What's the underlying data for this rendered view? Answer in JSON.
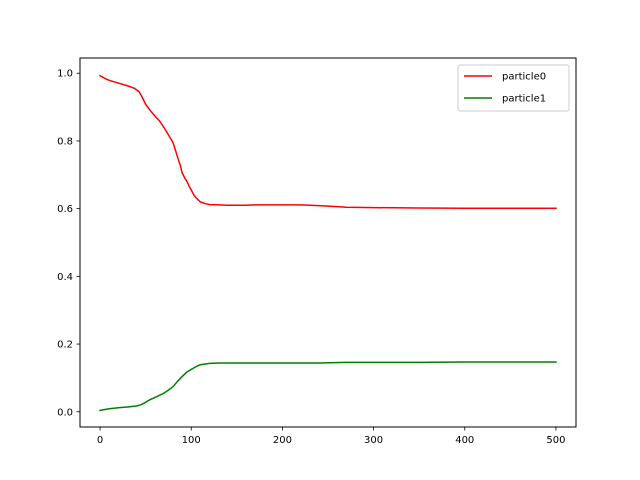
{
  "chart_data": {
    "type": "line",
    "title": "",
    "xlabel": "",
    "ylabel": "",
    "xlim": [
      -22,
      522
    ],
    "ylim": [
      -0.045,
      1.045
    ],
    "xticks": [
      0,
      100,
      200,
      300,
      400,
      500
    ],
    "xtick_labels": [
      "0",
      "100",
      "200",
      "300",
      "400",
      "500"
    ],
    "yticks": [
      0.0,
      0.2,
      0.4,
      0.6,
      0.8,
      1.0
    ],
    "ytick_labels": [
      "0.0",
      "0.2",
      "0.4",
      "0.6",
      "0.8",
      "1.0"
    ],
    "grid": false,
    "legend_position": "top-right",
    "series": [
      {
        "name": "particle0",
        "color": "#ff0000",
        "x": [
          0,
          5,
          10,
          20,
          30,
          38,
          43,
          47,
          50,
          55,
          60,
          65,
          70,
          75,
          80,
          83,
          85,
          88,
          90,
          93,
          95,
          98,
          100,
          103,
          105,
          110,
          115,
          120,
          130,
          140,
          150,
          160,
          170,
          180,
          200,
          220,
          240,
          260,
          270,
          300,
          350,
          400,
          450,
          500
        ],
        "y": [
          0.993,
          0.985,
          0.979,
          0.971,
          0.963,
          0.955,
          0.945,
          0.925,
          0.908,
          0.89,
          0.874,
          0.86,
          0.84,
          0.818,
          0.795,
          0.77,
          0.752,
          0.728,
          0.706,
          0.69,
          0.682,
          0.665,
          0.655,
          0.64,
          0.633,
          0.62,
          0.615,
          0.612,
          0.611,
          0.61,
          0.61,
          0.61,
          0.611,
          0.611,
          0.611,
          0.611,
          0.609,
          0.606,
          0.604,
          0.603,
          0.602,
          0.601,
          0.601,
          0.601
        ]
      },
      {
        "name": "particle1",
        "color": "#008000",
        "x": [
          0,
          10,
          20,
          30,
          40,
          45,
          50,
          55,
          60,
          70,
          75,
          80,
          85,
          90,
          95,
          100,
          105,
          110,
          120,
          130,
          150,
          200,
          240,
          270,
          300,
          350,
          400,
          450,
          500
        ],
        "y": [
          0.004,
          0.009,
          0.012,
          0.014,
          0.017,
          0.021,
          0.028,
          0.036,
          0.042,
          0.055,
          0.064,
          0.074,
          0.09,
          0.104,
          0.117,
          0.125,
          0.133,
          0.139,
          0.143,
          0.144,
          0.144,
          0.144,
          0.144,
          0.146,
          0.146,
          0.146,
          0.147,
          0.147,
          0.147
        ]
      }
    ]
  }
}
